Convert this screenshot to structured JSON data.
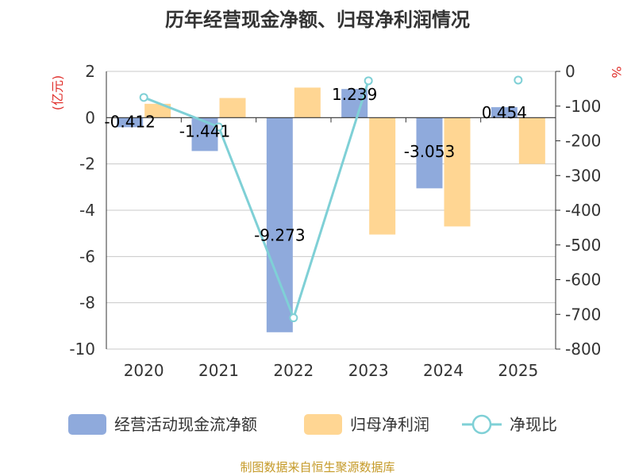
{
  "chart_data": {
    "type": "bar",
    "title": "历年经营现金净额、归母净利润情况",
    "categories": [
      "2020",
      "2021",
      "2022",
      "2023",
      "2024",
      "2025"
    ],
    "series": [
      {
        "name": "经营活动现金流净额",
        "kind": "bar",
        "axis": "left",
        "color": "#8faadc",
        "values": [
          -0.412,
          -1.441,
          -9.273,
          1.239,
          -3.053,
          0.454
        ],
        "labels": [
          "-0.412",
          "-1.441",
          "-9.273",
          "1.239",
          "-3.053",
          "0.454"
        ]
      },
      {
        "name": "归母净利润",
        "kind": "bar",
        "axis": "left",
        "color": "#ffd693",
        "values": [
          0.6,
          0.85,
          1.3,
          -5.05,
          -4.7,
          -2.0
        ]
      },
      {
        "name": "净现比",
        "kind": "line",
        "axis": "right",
        "color": "#7fd0d6",
        "values": [
          -75,
          -160,
          -710,
          -27,
          null,
          -25
        ]
      }
    ],
    "left_axis": {
      "label": "(亿元)",
      "min": -10,
      "max": 2,
      "ticks": [
        2,
        0,
        -2,
        -4,
        -6,
        -8,
        -10
      ]
    },
    "right_axis": {
      "label": "%",
      "min": -800,
      "max": 0,
      "ticks": [
        0,
        -100,
        -200,
        -300,
        -400,
        -500,
        -600,
        -700,
        -800
      ]
    },
    "legend": [
      "经营活动现金流净额",
      "归母净利润",
      "净现比"
    ],
    "source": "制图数据来自恒生聚源数据库"
  }
}
